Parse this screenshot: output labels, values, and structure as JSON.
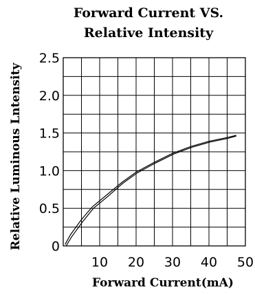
{
  "chart_data": {
    "type": "line",
    "title_line1": "Forward Current VS.",
    "title_line2": "Relative Intensity",
    "xlabel": "Forward Current(mA)",
    "ylabel": "Relative Luminous Lntensity",
    "xlim": [
      0,
      50
    ],
    "ylim": [
      0,
      2.5
    ],
    "x_ticks": [
      0,
      10,
      20,
      30,
      40,
      50
    ],
    "x_tick_labels": [
      "10",
      "20",
      "30",
      "40",
      "50"
    ],
    "y_ticks": [
      0,
      0.5,
      1.0,
      1.5,
      2.0,
      2.5
    ],
    "y_tick_labels": [
      "0",
      "0.5",
      "1.0",
      "1.5",
      "2.0",
      "2.5"
    ],
    "x_grid_divisions": 10,
    "y_grid_divisions": 10,
    "grid": true,
    "series": [
      {
        "x": [
          0.5,
          2,
          5,
          8,
          12,
          16,
          20,
          25,
          30,
          35,
          40,
          45,
          47.5
        ],
        "y": [
          0.02,
          0.15,
          0.35,
          0.52,
          0.68,
          0.84,
          0.98,
          1.11,
          1.23,
          1.32,
          1.39,
          1.44,
          1.47
        ]
      },
      {
        "x": [
          0.8,
          2.3,
          5.3,
          8.3,
          12.3,
          16.3,
          20.3,
          25.3,
          30.3,
          35.3,
          40.3,
          45.3,
          47.5
        ],
        "y": [
          0.0,
          0.12,
          0.32,
          0.5,
          0.66,
          0.83,
          0.97,
          1.1,
          1.22,
          1.31,
          1.38,
          1.43,
          1.46
        ]
      }
    ]
  }
}
